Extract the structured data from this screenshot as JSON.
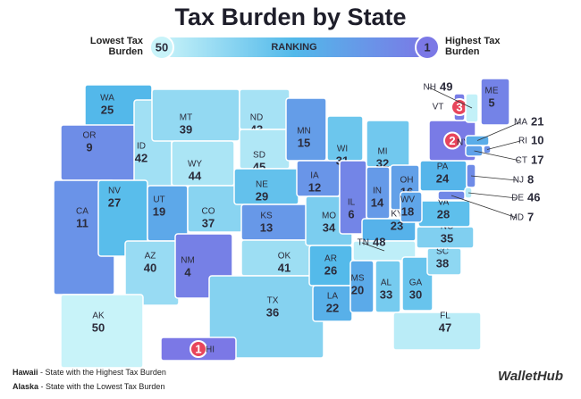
{
  "map": {
    "title": "Tax Burden by State",
    "legend": {
      "low_label": "Lowest Tax Burden",
      "high_label": "Highest Tax Burden",
      "low_rank": 50,
      "high_rank": 1,
      "bar_label": "RANKING"
    },
    "states": [
      {
        "abbr": "WA",
        "rank": 25
      },
      {
        "abbr": "OR",
        "rank": 9
      },
      {
        "abbr": "CA",
        "rank": 11
      },
      {
        "abbr": "ID",
        "rank": 42
      },
      {
        "abbr": "NV",
        "rank": 27
      },
      {
        "abbr": "MT",
        "rank": 39
      },
      {
        "abbr": "WY",
        "rank": 44
      },
      {
        "abbr": "UT",
        "rank": 19
      },
      {
        "abbr": "AZ",
        "rank": 40
      },
      {
        "abbr": "CO",
        "rank": 37
      },
      {
        "abbr": "NM",
        "rank": 4
      },
      {
        "abbr": "ND",
        "rank": 43
      },
      {
        "abbr": "SD",
        "rank": 45
      },
      {
        "abbr": "NE",
        "rank": 29
      },
      {
        "abbr": "KS",
        "rank": 13
      },
      {
        "abbr": "OK",
        "rank": 41
      },
      {
        "abbr": "TX",
        "rank": 36
      },
      {
        "abbr": "MN",
        "rank": 15
      },
      {
        "abbr": "IA",
        "rank": 12
      },
      {
        "abbr": "MO",
        "rank": 34
      },
      {
        "abbr": "AR",
        "rank": 26
      },
      {
        "abbr": "LA",
        "rank": 22
      },
      {
        "abbr": "WI",
        "rank": 31
      },
      {
        "abbr": "IL",
        "rank": 6
      },
      {
        "abbr": "MI",
        "rank": 32
      },
      {
        "abbr": "IN",
        "rank": 14
      },
      {
        "abbr": "OH",
        "rank": 16
      },
      {
        "abbr": "KY",
        "rank": 23
      },
      {
        "abbr": "TN",
        "rank": 48
      },
      {
        "abbr": "MS",
        "rank": 20
      },
      {
        "abbr": "AL",
        "rank": 33
      },
      {
        "abbr": "GA",
        "rank": 30
      },
      {
        "abbr": "FL",
        "rank": 47
      },
      {
        "abbr": "SC",
        "rank": 38
      },
      {
        "abbr": "NC",
        "rank": 35
      },
      {
        "abbr": "VA",
        "rank": 28
      },
      {
        "abbr": "WV",
        "rank": 18
      },
      {
        "abbr": "PA",
        "rank": 24
      },
      {
        "abbr": "NY",
        "rank": 2
      },
      {
        "abbr": "ME",
        "rank": 5
      },
      {
        "abbr": "VT",
        "rank": 3
      },
      {
        "abbr": "NH",
        "rank": 49
      },
      {
        "abbr": "MA",
        "rank": 21
      },
      {
        "abbr": "RI",
        "rank": 10
      },
      {
        "abbr": "CT",
        "rank": 17
      },
      {
        "abbr": "NJ",
        "rank": 8
      },
      {
        "abbr": "DE",
        "rank": 46
      },
      {
        "abbr": "MD",
        "rank": 7
      },
      {
        "abbr": "AK",
        "rank": 50
      },
      {
        "abbr": "HI",
        "rank": 1
      }
    ],
    "notes": [
      {
        "state": "Hawaii",
        "text": " - State with the Highest Tax Burden"
      },
      {
        "state": "Alaska",
        "text": " - State with the Lowest Tax Burden"
      }
    ],
    "brand": "WalletHub"
  }
}
